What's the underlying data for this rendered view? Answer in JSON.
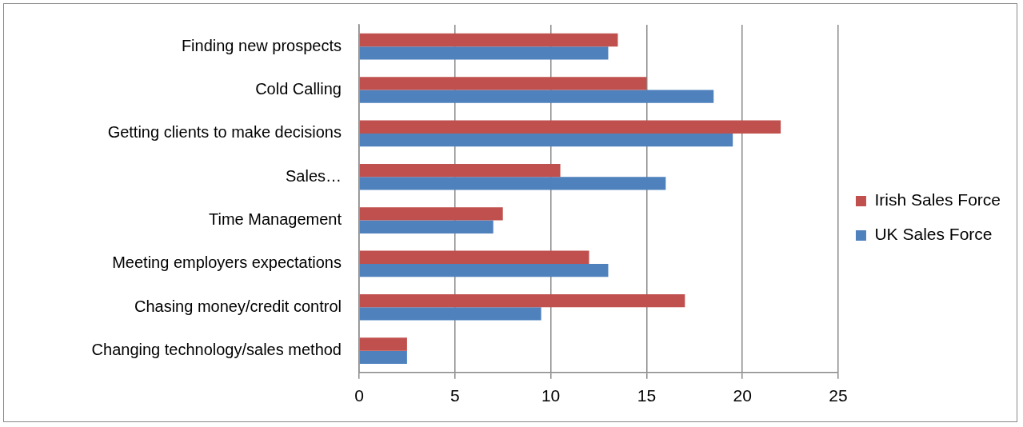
{
  "chart_data": {
    "type": "bar",
    "orientation": "horizontal",
    "categories": [
      "Finding new prospects",
      "Cold Calling",
      "Getting clients to make decisions",
      "Sales…",
      "Time Management",
      "Meeting employers expectations",
      "Chasing money/credit control",
      "Changing technology/sales method"
    ],
    "series": [
      {
        "name": "Irish Sales Force",
        "color": "#c0504d",
        "values": [
          13.5,
          15,
          22,
          10.5,
          7.5,
          12,
          17,
          2.5
        ]
      },
      {
        "name": "UK Sales Force",
        "color": "#4f81bd",
        "values": [
          13,
          18.5,
          19.5,
          16,
          7,
          13,
          9.5,
          2.5
        ]
      }
    ],
    "xlim": [
      0,
      25
    ],
    "xticks": [
      0,
      5,
      10,
      15,
      20,
      25
    ],
    "grid": "x",
    "legend": "right"
  }
}
